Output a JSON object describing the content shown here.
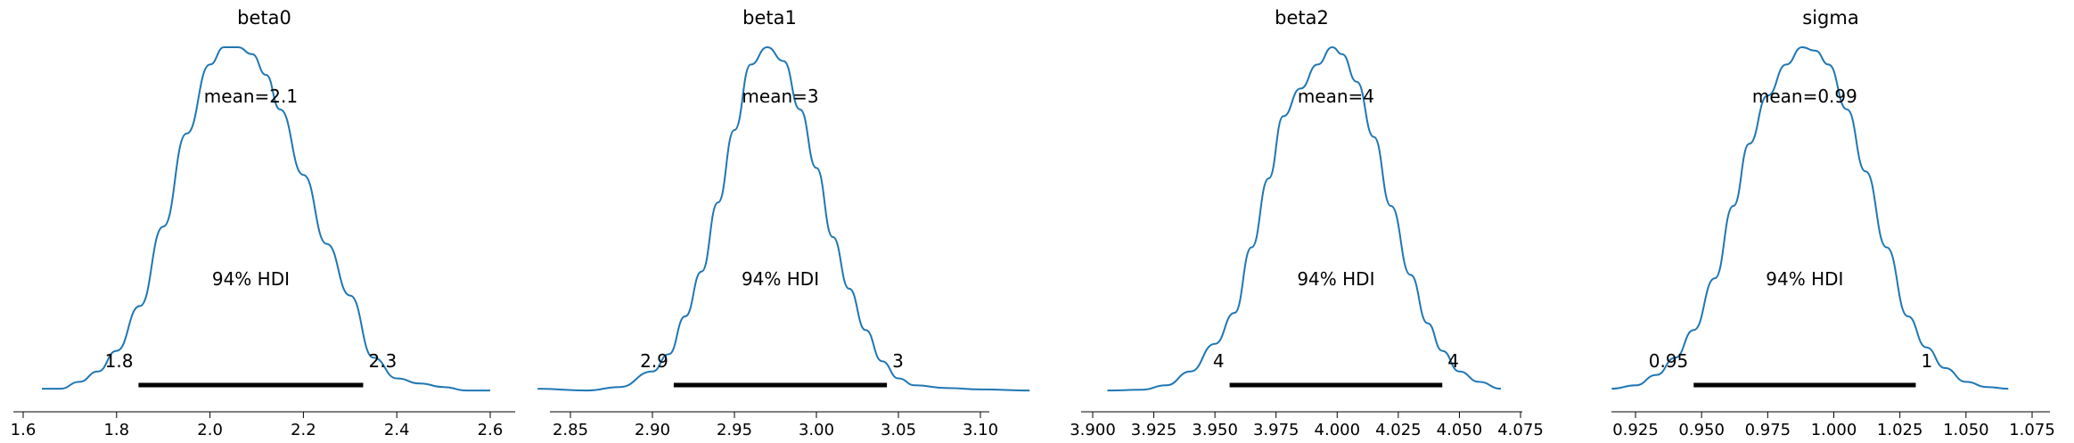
{
  "colors": {
    "curve": "#1f77b4",
    "hdi_bar": "#000000",
    "axis": "#000000",
    "background": "#ffffff"
  },
  "chart_data": [
    {
      "type": "line",
      "title": "beta0",
      "mean_label": "mean=2.1",
      "hdi_label": "94% HDI",
      "hdi": {
        "low": 1.847,
        "high": 2.328,
        "low_label": "1.8",
        "high_label": "2.3"
      },
      "xlim": [
        1.6,
        2.6
      ],
      "x_ticks": [
        1.6,
        1.8,
        2.0,
        2.2,
        2.4,
        2.6
      ],
      "x_tick_labels": [
        "1.6",
        "1.8",
        "2.0",
        "2.2",
        "2.4",
        "2.6"
      ],
      "density": {
        "x": [
          1.64,
          1.68,
          1.72,
          1.76,
          1.8,
          1.85,
          1.9,
          1.95,
          2.0,
          2.03,
          2.06,
          2.09,
          2.12,
          2.15,
          2.2,
          2.25,
          2.3,
          2.35,
          2.4,
          2.45,
          2.5,
          2.55,
          2.6
        ],
        "y": [
          0.01,
          0.01,
          0.03,
          0.06,
          0.12,
          0.25,
          0.48,
          0.75,
          0.95,
          1.0,
          1.0,
          0.98,
          0.92,
          0.82,
          0.63,
          0.43,
          0.28,
          0.1,
          0.04,
          0.025,
          0.015,
          0.005,
          0.005
        ]
      },
      "y_scale": 1.0
    },
    {
      "type": "line",
      "title": "beta1",
      "mean_label": "mean=3",
      "hdi_label": "94% HDI",
      "hdi": {
        "low": 2.913,
        "high": 3.043,
        "low_label": "2.9",
        "high_label": "3"
      },
      "xlim": [
        2.85,
        3.1
      ],
      "x_ticks": [
        2.85,
        2.9,
        2.95,
        3.0,
        3.05,
        3.1
      ],
      "x_tick_labels": [
        "2.85",
        "2.90",
        "2.95",
        "3.00",
        "3.05",
        "3.10"
      ],
      "density": {
        "x": [
          2.83,
          2.86,
          2.88,
          2.9,
          2.91,
          2.92,
          2.93,
          2.94,
          2.95,
          2.96,
          2.97,
          2.98,
          2.99,
          3.0,
          3.01,
          3.02,
          3.03,
          3.04,
          3.05,
          3.06,
          3.08,
          3.1,
          3.13
        ],
        "y": [
          0.01,
          0.005,
          0.015,
          0.06,
          0.11,
          0.22,
          0.35,
          0.55,
          0.76,
          0.95,
          1.0,
          0.96,
          0.82,
          0.65,
          0.45,
          0.3,
          0.18,
          0.09,
          0.04,
          0.02,
          0.012,
          0.008,
          0.005
        ]
      },
      "y_scale": 1.0
    },
    {
      "type": "line",
      "title": "beta2",
      "mean_label": "mean=4",
      "hdi_label": "94% HDI",
      "hdi": {
        "low": 3.956,
        "high": 4.043,
        "low_label": "4",
        "high_label": "4"
      },
      "xlim": [
        3.9,
        4.075
      ],
      "x_ticks": [
        3.9,
        3.925,
        3.95,
        3.975,
        4.0,
        4.025,
        4.05,
        4.075
      ],
      "x_tick_labels": [
        "3.900",
        "3.925",
        "3.950",
        "3.975",
        "4.000",
        "4.025",
        "4.050",
        "4.075"
      ],
      "density": {
        "x": [
          3.906,
          3.92,
          3.93,
          3.94,
          3.95,
          3.958,
          3.965,
          3.972,
          3.978,
          3.985,
          3.992,
          3.998,
          4.002,
          4.008,
          4.015,
          4.022,
          4.03,
          4.037,
          4.043,
          4.05,
          4.058,
          4.067
        ],
        "y": [
          0.005,
          0.007,
          0.02,
          0.06,
          0.14,
          0.23,
          0.42,
          0.62,
          0.8,
          0.88,
          0.95,
          1.0,
          0.98,
          0.9,
          0.74,
          0.54,
          0.34,
          0.2,
          0.12,
          0.06,
          0.03,
          0.01
        ]
      },
      "y_scale": 1.0
    },
    {
      "type": "line",
      "title": "sigma",
      "mean_label": "mean=0.99",
      "hdi_label": "94% HDI",
      "hdi": {
        "low": 0.947,
        "high": 1.031,
        "low_label": "0.95",
        "high_label": "1"
      },
      "xlim": [
        0.925,
        1.075
      ],
      "x_ticks": [
        0.925,
        0.95,
        0.975,
        1.0,
        1.025,
        1.05,
        1.075
      ],
      "x_tick_labels": [
        "0.925",
        "0.950",
        "0.975",
        "1.000",
        "1.025",
        "1.050",
        "1.075"
      ],
      "density": {
        "x": [
          0.916,
          0.925,
          0.933,
          0.94,
          0.947,
          0.955,
          0.962,
          0.968,
          0.975,
          0.982,
          0.988,
          0.993,
          0.998,
          1.005,
          1.012,
          1.02,
          1.028,
          1.035,
          1.042,
          1.05,
          1.058,
          1.066
        ],
        "y": [
          0.01,
          0.02,
          0.05,
          0.1,
          0.18,
          0.33,
          0.54,
          0.72,
          0.86,
          0.95,
          1.0,
          0.99,
          0.95,
          0.82,
          0.64,
          0.42,
          0.22,
          0.13,
          0.07,
          0.03,
          0.015,
          0.01
        ]
      },
      "y_scale": 1.0
    }
  ]
}
